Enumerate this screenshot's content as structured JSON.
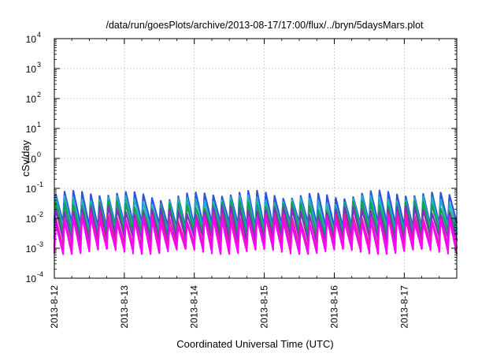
{
  "chart_data": {
    "type": "line",
    "title": "/data/run/goesPlots/archive/2013-08-17/17:00/flux/../bryn/5daysMars.plot",
    "xlabel": "Coordinated Universal Time (UTC)",
    "ylabel": "cSv/day",
    "y_scale": "log",
    "ylim": [
      0.0001,
      10000
    ],
    "xlim": [
      "2013-08-12 00:00",
      "2013-08-17 18:00"
    ],
    "x_ticks": [
      "2013-8-12",
      "2013-8-13",
      "2013-8-14",
      "2013-8-15",
      "2013-8-16",
      "2013-8-17"
    ],
    "y_ticks": [
      {
        "base": "10",
        "exp": "-4"
      },
      {
        "base": "10",
        "exp": "-3"
      },
      {
        "base": "10",
        "exp": "-2"
      },
      {
        "base": "10",
        "exp": "-1"
      },
      {
        "base": "10",
        "exp": "0"
      },
      {
        "base": "10",
        "exp": "1"
      },
      {
        "base": "10",
        "exp": "2"
      },
      {
        "base": "10",
        "exp": "3"
      },
      {
        "base": "10",
        "exp": "4"
      }
    ],
    "grid": true,
    "legend": "none",
    "pattern": {
      "cycles_per_day": 8,
      "peak_typical": 0.06,
      "trough_typical": 0.001
    },
    "series": [
      {
        "color": "#3050e0",
        "peak": 0.065,
        "trough": 0.006
      },
      {
        "color": "#20b0c0",
        "peak": 0.045,
        "trough": 0.004
      },
      {
        "color": "#10a050",
        "peak": 0.03,
        "trough": 0.003
      },
      {
        "color": "#8030c0",
        "peak": 0.02,
        "trough": 0.002
      },
      {
        "color": "#e020a0",
        "peak": 0.012,
        "trough": 0.0012
      },
      {
        "color": "#ff00ff",
        "peak": 0.009,
        "trough": 0.0008
      }
    ]
  }
}
